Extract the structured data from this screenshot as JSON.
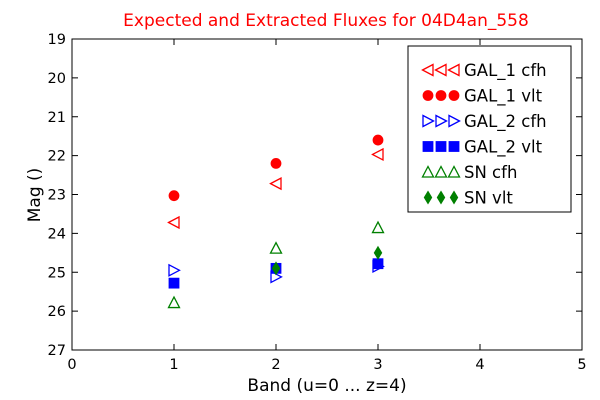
{
  "chart_data": {
    "type": "scatter",
    "title": "Expected and Extracted Fluxes for 04D4an_558",
    "xlabel": "Band (u=0 ... z=4)",
    "ylabel": "Mag ()",
    "xlim": [
      0,
      5
    ],
    "ylim": [
      27,
      19
    ],
    "y_inverted": true,
    "grid": false,
    "legend_position": "top-right",
    "x_ticks": [
      "0",
      "1",
      "2",
      "3",
      "4",
      "5"
    ],
    "y_ticks": [
      "19",
      "20",
      "21",
      "22",
      "23",
      "24",
      "25",
      "26",
      "27"
    ],
    "series": [
      {
        "name": "GAL_1 cfh",
        "marker": "triangle-left",
        "filled": false,
        "color": "#ff0000",
        "points": [
          {
            "x": 1,
            "y": 23.72
          },
          {
            "x": 2,
            "y": 22.72
          },
          {
            "x": 3,
            "y": 21.97
          }
        ]
      },
      {
        "name": "GAL_1 vlt",
        "marker": "circle",
        "filled": true,
        "color": "#ff0000",
        "points": [
          {
            "x": 1,
            "y": 23.03
          },
          {
            "x": 2,
            "y": 22.2
          },
          {
            "x": 3,
            "y": 21.6
          }
        ]
      },
      {
        "name": "GAL_2 cfh",
        "marker": "triangle-right",
        "filled": false,
        "color": "#0000ff",
        "points": [
          {
            "x": 1,
            "y": 24.95
          },
          {
            "x": 2,
            "y": 25.12
          },
          {
            "x": 3,
            "y": 24.85
          }
        ]
      },
      {
        "name": "GAL_2 vlt",
        "marker": "square",
        "filled": true,
        "color": "#0000ff",
        "points": [
          {
            "x": 1,
            "y": 25.28
          },
          {
            "x": 2,
            "y": 24.9
          },
          {
            "x": 3,
            "y": 24.78
          }
        ]
      },
      {
        "name": "SN cfh",
        "marker": "triangle-up",
        "filled": false,
        "color": "#008000",
        "points": [
          {
            "x": 1,
            "y": 25.78
          },
          {
            "x": 2,
            "y": 24.38
          },
          {
            "x": 3,
            "y": 23.85
          }
        ]
      },
      {
        "name": "SN vlt",
        "marker": "diamond",
        "filled": true,
        "color": "#008000",
        "points": [
          {
            "x": 2,
            "y": 24.9
          },
          {
            "x": 3,
            "y": 24.5
          }
        ]
      }
    ]
  }
}
